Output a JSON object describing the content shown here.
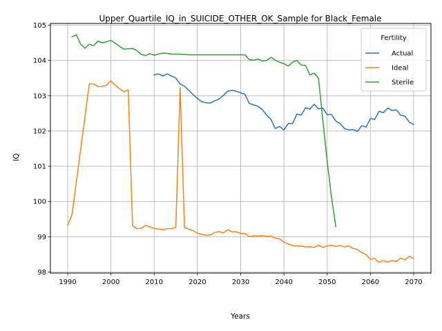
{
  "chart_data": {
    "type": "line",
    "title": "Upper_Quartile_IQ_in_SUICIDE_OTHER_OK_Sample for Black_Female",
    "xlabel": "Years",
    "ylabel": "IQ",
    "xlim": [
      1986,
      2074
    ],
    "ylim": [
      97.97,
      105.05
    ],
    "xticks": [
      1990,
      2000,
      2010,
      2020,
      2030,
      2040,
      2050,
      2060,
      2070
    ],
    "yticks": [
      98,
      99,
      100,
      101,
      102,
      103,
      104,
      105
    ],
    "grid": true,
    "legend": {
      "title": "Fertility",
      "placement": "top-right"
    },
    "series": [
      {
        "name": "Actual",
        "color": "#1f77b4",
        "x": [
          2010,
          2011,
          2012,
          2013,
          2014,
          2015,
          2016,
          2017,
          2018,
          2019,
          2020,
          2021,
          2022,
          2023,
          2024,
          2025,
          2026,
          2027,
          2028,
          2029,
          2030,
          2031,
          2032,
          2033,
          2034,
          2035,
          2036,
          2037,
          2038,
          2039,
          2040,
          2041,
          2042,
          2043,
          2044,
          2045,
          2046,
          2047,
          2048,
          2049,
          2050,
          2051,
          2052,
          2053,
          2054,
          2055,
          2056,
          2057,
          2058,
          2059,
          2060,
          2061,
          2062,
          2063,
          2064,
          2065,
          2066,
          2067,
          2068,
          2069,
          2070
        ],
        "y": [
          103.59,
          103.62,
          103.56,
          103.62,
          103.56,
          103.5,
          103.33,
          103.27,
          103.15,
          103.03,
          102.92,
          102.83,
          102.8,
          102.79,
          102.86,
          102.9,
          103.01,
          103.13,
          103.15,
          103.13,
          103.08,
          103.04,
          102.78,
          102.74,
          102.7,
          102.61,
          102.45,
          102.33,
          102.07,
          102.13,
          102.03,
          102.21,
          102.21,
          102.48,
          102.45,
          102.66,
          102.62,
          102.76,
          102.63,
          102.65,
          102.46,
          102.47,
          102.28,
          102.21,
          102.07,
          102.03,
          102.04,
          101.99,
          102.15,
          102.11,
          102.35,
          102.33,
          102.56,
          102.52,
          102.65,
          102.58,
          102.6,
          102.45,
          102.42,
          102.25,
          102.18
        ]
      },
      {
        "name": "Ideal",
        "color": "#ff7f0e",
        "x": [
          1990,
          1991,
          1995,
          1996,
          1997,
          1998,
          1999,
          2000,
          2001,
          2002,
          2003,
          2004,
          2005,
          2006,
          2007,
          2008,
          2009,
          2010,
          2011,
          2012,
          2013,
          2014,
          2015,
          2016,
          2017,
          2018,
          2019,
          2020,
          2021,
          2022,
          2023,
          2024,
          2025,
          2026,
          2027,
          2028,
          2029,
          2030,
          2031,
          2032,
          2033,
          2034,
          2035,
          2036,
          2037,
          2038,
          2039,
          2040,
          2041,
          2042,
          2043,
          2044,
          2045,
          2046,
          2047,
          2048,
          2049,
          2050,
          2051,
          2052,
          2053,
          2054,
          2055,
          2056,
          2057,
          2058,
          2059,
          2060,
          2061,
          2062,
          2063,
          2064,
          2065,
          2066,
          2067,
          2068,
          2069,
          2070
        ],
        "y": [
          99.33,
          99.63,
          103.34,
          103.33,
          103.26,
          103.26,
          103.3,
          103.42,
          103.29,
          103.2,
          103.11,
          103.17,
          99.31,
          99.23,
          99.24,
          99.32,
          99.28,
          99.24,
          99.22,
          99.2,
          99.23,
          99.23,
          99.27,
          103.23,
          99.26,
          99.22,
          99.17,
          99.1,
          99.07,
          99.04,
          99.05,
          99.12,
          99.15,
          99.11,
          99.2,
          99.14,
          99.14,
          99.1,
          99.09,
          99.0,
          99.03,
          99.02,
          99.03,
          99.01,
          99.02,
          98.96,
          98.94,
          98.85,
          98.8,
          98.74,
          98.74,
          98.74,
          98.71,
          98.72,
          98.7,
          98.76,
          98.7,
          98.74,
          98.76,
          98.73,
          98.75,
          98.71,
          98.74,
          98.67,
          98.64,
          98.55,
          98.5,
          98.36,
          98.39,
          98.27,
          98.33,
          98.28,
          98.33,
          98.3,
          98.39,
          98.35,
          98.45,
          98.38
        ]
      },
      {
        "name": "Sterile",
        "color": "#2ca02c",
        "x": [
          1991,
          1992,
          1993,
          1994,
          1995,
          1996,
          1997,
          1998,
          1999,
          2000,
          2001,
          2002,
          2003,
          2004,
          2005,
          2006,
          2007,
          2008,
          2009,
          2010,
          2011,
          2012,
          2013,
          2014,
          2015,
          2016,
          2017,
          2018,
          2019,
          2020,
          2021,
          2022,
          2023,
          2024,
          2025,
          2026,
          2027,
          2028,
          2029,
          2030,
          2031,
          2032,
          2033,
          2034,
          2035,
          2036,
          2037,
          2038,
          2039,
          2040,
          2041,
          2042,
          2043,
          2044,
          2045,
          2046,
          2047,
          2048,
          2049,
          2050,
          2051,
          2052
        ],
        "y": [
          104.67,
          104.73,
          104.46,
          104.35,
          104.46,
          104.42,
          104.55,
          104.5,
          104.53,
          104.57,
          104.49,
          104.4,
          104.32,
          104.33,
          104.34,
          104.28,
          104.17,
          104.14,
          104.19,
          104.15,
          104.18,
          104.21,
          104.2,
          104.18,
          104.18,
          104.18,
          104.17,
          104.16,
          104.16,
          104.16,
          104.16,
          104.16,
          104.16,
          104.16,
          104.16,
          104.16,
          104.16,
          104.16,
          104.16,
          104.16,
          104.16,
          104.02,
          104.01,
          104.04,
          103.99,
          104.0,
          104.09,
          104.01,
          103.95,
          103.91,
          103.84,
          103.95,
          104.0,
          103.87,
          103.86,
          103.59,
          103.64,
          103.49,
          102.3,
          101.15,
          100.12,
          99.29
        ]
      }
    ]
  }
}
